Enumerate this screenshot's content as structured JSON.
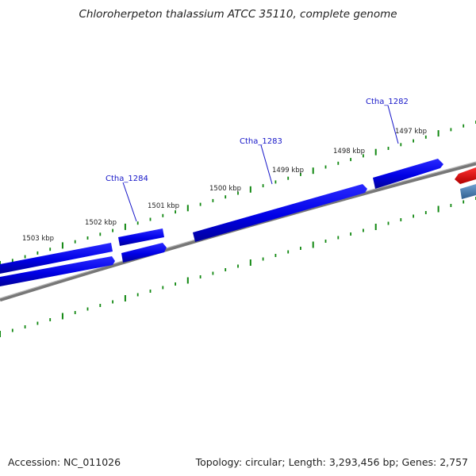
{
  "title": "Chloroherpeton thalassium ATCC 35110, complete genome",
  "footer": {
    "accession": "Accession: NC_011026",
    "summary": "Topology: circular; Length: 3,293,456 bp; Genes: 2,757"
  },
  "colors": {
    "gene_forward": "#0000ee",
    "gene_highlight": "#ff0000",
    "gene_other": "#4682b4",
    "backbone": "#8a8a8a",
    "ticks": "#118811",
    "label": "#1515c8"
  },
  "ruler_labels": [
    "1503 kbp",
    "1502 kbp",
    "1501 kbp",
    "1500 kbp",
    "1499 kbp",
    "1498 kbp",
    "1497 kbp"
  ],
  "gene_labels": [
    "Ctha_1284",
    "Ctha_1283",
    "Ctha_1282"
  ]
}
